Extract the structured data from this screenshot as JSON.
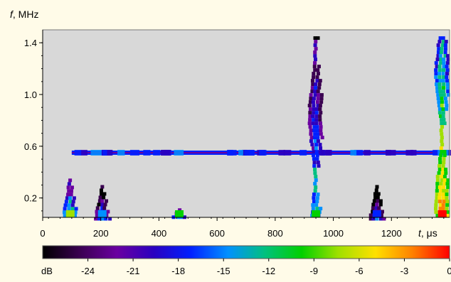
{
  "chart_data": {
    "type": "heatmap",
    "title": "",
    "ylabel": {
      "var": "f",
      "unit": ", MHz"
    },
    "xlabel": {
      "var": "t",
      "unit": ", μs"
    },
    "xlim": [
      0,
      1400
    ],
    "ylim": [
      0.05,
      1.5
    ],
    "x_ticks": [
      0,
      200,
      400,
      600,
      800,
      1000,
      1200
    ],
    "y_ticks": [
      0.2,
      0.6,
      1.0,
      1.4
    ],
    "y_tick_labels": [
      "0.2",
      "0.6",
      "1.0",
      "1.4"
    ],
    "background_color": "#d8d8d8",
    "colorbar": {
      "label": "dB",
      "range": [
        -27,
        0
      ],
      "ticks": [
        -24,
        -21,
        -18,
        -15,
        -12,
        -9,
        -6,
        -3,
        0
      ],
      "tick_labels": [
        "-24",
        "-21",
        "-18",
        "-15",
        "-12",
        "-9",
        "-6",
        "-3",
        "0"
      ],
      "colors": [
        "#000000",
        "#3a0050",
        "#6a00a0",
        "#2a00c0",
        "#0020ff",
        "#0090ff",
        "#00c080",
        "#00d000",
        "#a0e000",
        "#ffe000",
        "#ff8000",
        "#ff0000"
      ]
    },
    "features": [
      {
        "name": "horizontal band",
        "t": [
          100,
          1400
        ],
        "f": [
          0.55,
          0.55
        ],
        "level_db": -18
      },
      {
        "name": "burst",
        "t_center": 95,
        "f_top": 0.35,
        "peak_db": -8
      },
      {
        "name": "burst",
        "t_center": 205,
        "f_top": 0.3,
        "peak_db": -14
      },
      {
        "name": "burst",
        "t_center": 470,
        "f_top": 0.12,
        "peak_db": -9
      },
      {
        "name": "burst",
        "t_center": 940,
        "f_top": 1.45,
        "peak_db": -10
      },
      {
        "name": "burst",
        "t_center": 1150,
        "f_top": 0.3,
        "peak_db": -16
      },
      {
        "name": "burst",
        "t_center": 1375,
        "f_top": 1.45,
        "peak_db": -1
      }
    ]
  }
}
